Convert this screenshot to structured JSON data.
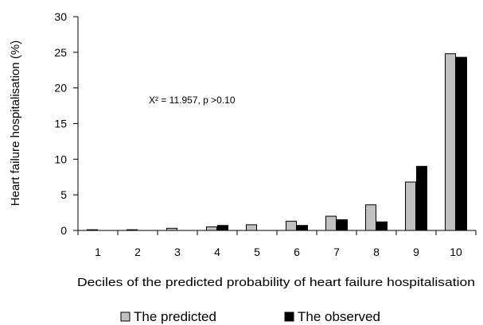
{
  "chart_data": {
    "type": "bar",
    "title": "",
    "xlabel": "Deciles of the predicted probability of heart failure hospitalisation",
    "ylabel": "Heart failure hospitalisation (%)",
    "ylim": [
      0,
      30
    ],
    "yticks": [
      "0",
      "5",
      "10",
      "15",
      "20",
      "25",
      "30"
    ],
    "categories": [
      "1",
      "2",
      "3",
      "4",
      "5",
      "6",
      "7",
      "8",
      "9",
      "10"
    ],
    "series": [
      {
        "name": "The predicted",
        "color": "#c0c0c0",
        "values": [
          0.1,
          0.1,
          0.3,
          0.5,
          0.8,
          1.3,
          2.0,
          3.6,
          6.8,
          24.8
        ]
      },
      {
        "name": "The observed",
        "color": "#000000",
        "values": [
          0,
          0,
          0,
          0.7,
          0,
          0.7,
          1.5,
          1.2,
          9.0,
          24.3
        ]
      }
    ],
    "annotation": "X² = 11.957,  p >0.10",
    "legend_position": "bottom",
    "grid": false
  }
}
